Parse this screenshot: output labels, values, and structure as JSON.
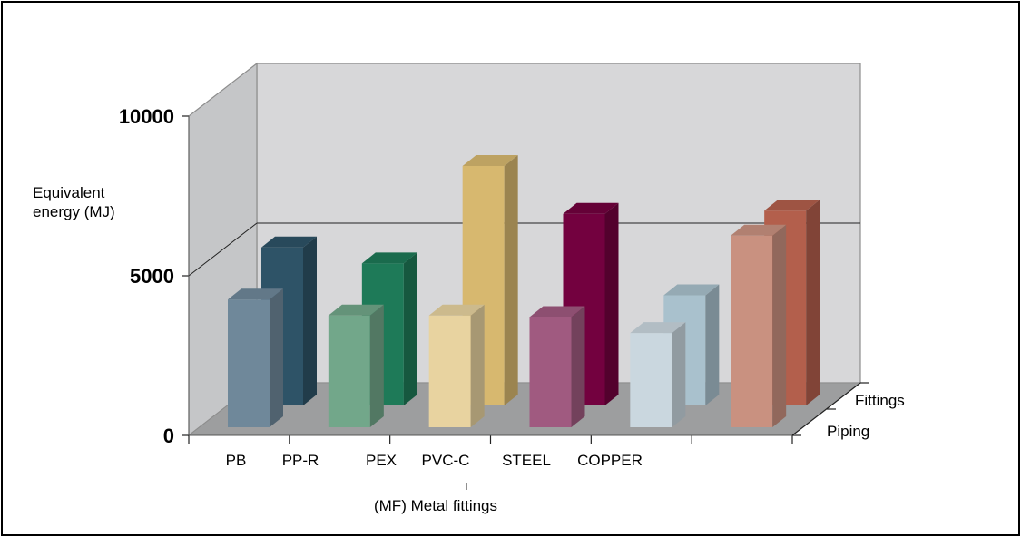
{
  "chart_data": {
    "type": "bar",
    "title": "",
    "xlabel": "",
    "ylabel": "Equivalent energy (MJ)",
    "ylabel_lines": [
      "Equivalent",
      "energy (MJ)"
    ],
    "ylim": [
      0,
      10000
    ],
    "yticks": [
      0,
      5000,
      10000
    ],
    "categories": [
      "PB",
      "PP-R",
      "PEX",
      "PVC-C",
      "STEEL",
      "COPPER",
      "",
      ""
    ],
    "depth_labels": [
      "Fittings",
      "Piping"
    ],
    "annotations": [
      "(MF) Metal fittings"
    ],
    "groups": [
      {
        "piping": 4000,
        "fittings": 4950,
        "piping_color": "#6f889a",
        "fittings_color": "#2e5367"
      },
      {
        "piping": 3500,
        "fittings": 4450,
        "piping_color": "#72a78a",
        "fittings_color": "#1e7a58"
      },
      {
        "piping": 3500,
        "fittings": 7500,
        "piping_color": "#e8d3a0",
        "fittings_color": "#d7b86f"
      },
      {
        "piping": 3450,
        "fittings": 6000,
        "piping_color": "#a05a80",
        "fittings_color": "#73013f"
      },
      {
        "piping": 2950,
        "fittings": 3450,
        "piping_color": "#cad7df",
        "fittings_color": "#a9c1cd"
      },
      {
        "piping": 6000,
        "fittings": 6100,
        "piping_color": "#c99180",
        "fittings_color": "#b35f4c"
      }
    ]
  }
}
